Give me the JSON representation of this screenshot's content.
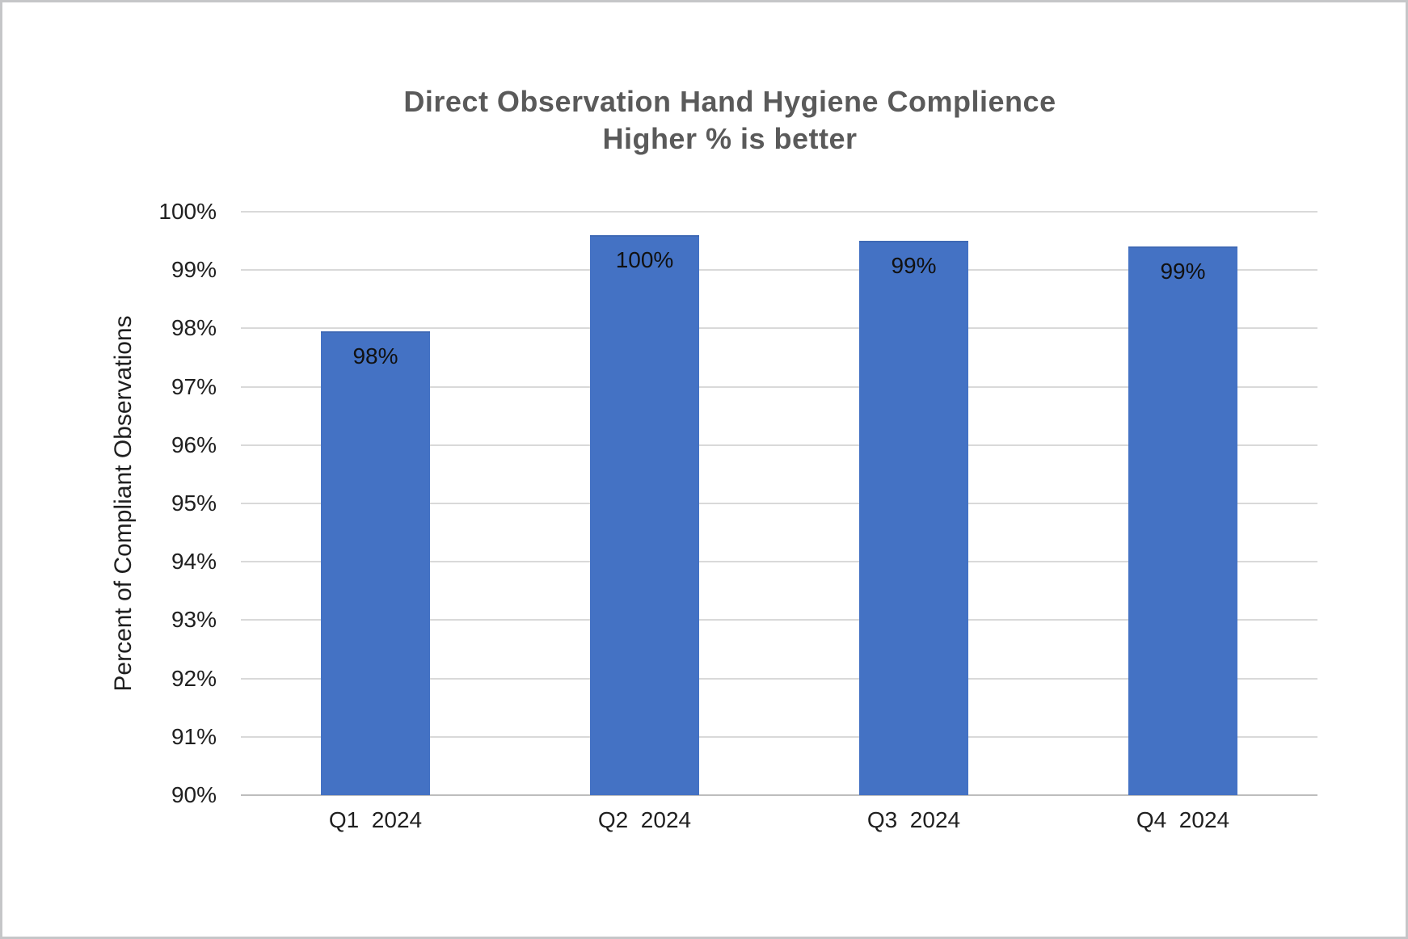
{
  "window": {
    "background_color": "#ffffff",
    "border_color": "#c5c6c8"
  },
  "chart_data": {
    "type": "bar",
    "title": "Direct Observation Hand Hygiene Complience",
    "subtitle": "Higher % is better",
    "xlabel": "",
    "ylabel": "Percent of Compliant Observations",
    "categories": [
      "Q1  2024",
      "Q2  2024",
      "Q3  2024",
      "Q4  2024"
    ],
    "values": [
      98,
      100,
      99,
      99
    ],
    "data_labels": [
      "98%",
      "100%",
      "99%",
      "99%"
    ],
    "drawn_bar_tops_percent": [
      97.95,
      99.6,
      99.5,
      99.4
    ],
    "ylim": [
      90,
      100
    ],
    "y_ticks": [
      "100%",
      "99%",
      "98%",
      "97%",
      "96%",
      "95%",
      "94%",
      "93%",
      "92%",
      "91%",
      "90%"
    ],
    "grid": "horizontal",
    "legend": "none",
    "bar_color": "#4472c4",
    "gridline_color": "#d9d9d9",
    "axis_line_color": "#bdbdbd",
    "title_color": "#5a5a5a",
    "tick_label_color": "#1f1f1f"
  }
}
